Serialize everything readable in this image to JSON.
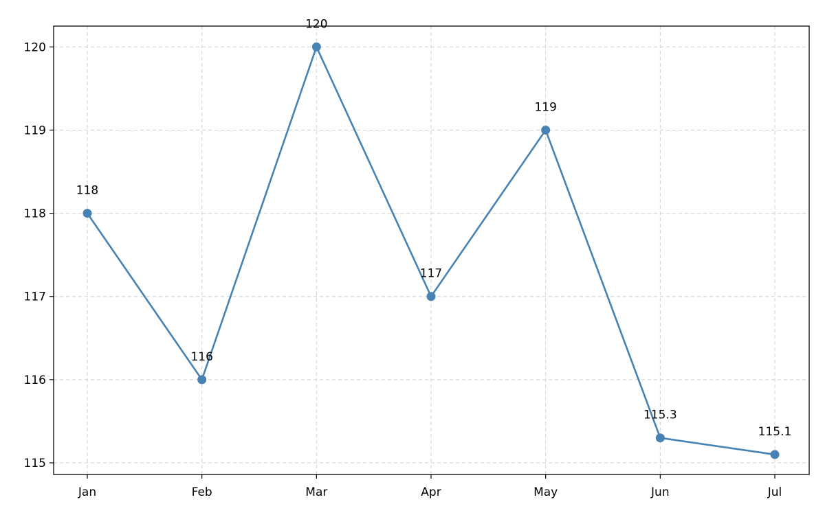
{
  "chart_data": {
    "type": "line",
    "title": "",
    "xlabel": "",
    "ylabel": "",
    "categories": [
      "Jan",
      "Feb",
      "Mar",
      "Apr",
      "May",
      "Jun",
      "Jul"
    ],
    "series": [
      {
        "values": [
          118,
          116,
          120,
          117,
          119,
          115.3,
          115.1
        ],
        "data_labels": [
          "118",
          "116",
          "120",
          "117",
          "119",
          "115.3",
          "115.1"
        ],
        "color": "#4682b4",
        "marker": "circle"
      }
    ],
    "yticks": [
      115,
      116,
      117,
      118,
      119,
      120
    ],
    "ytick_labels": [
      "115",
      "116",
      "117",
      "118",
      "119",
      "120"
    ],
    "ylim": [
      114.86,
      120.25
    ],
    "grid": true,
    "legend": "none"
  }
}
